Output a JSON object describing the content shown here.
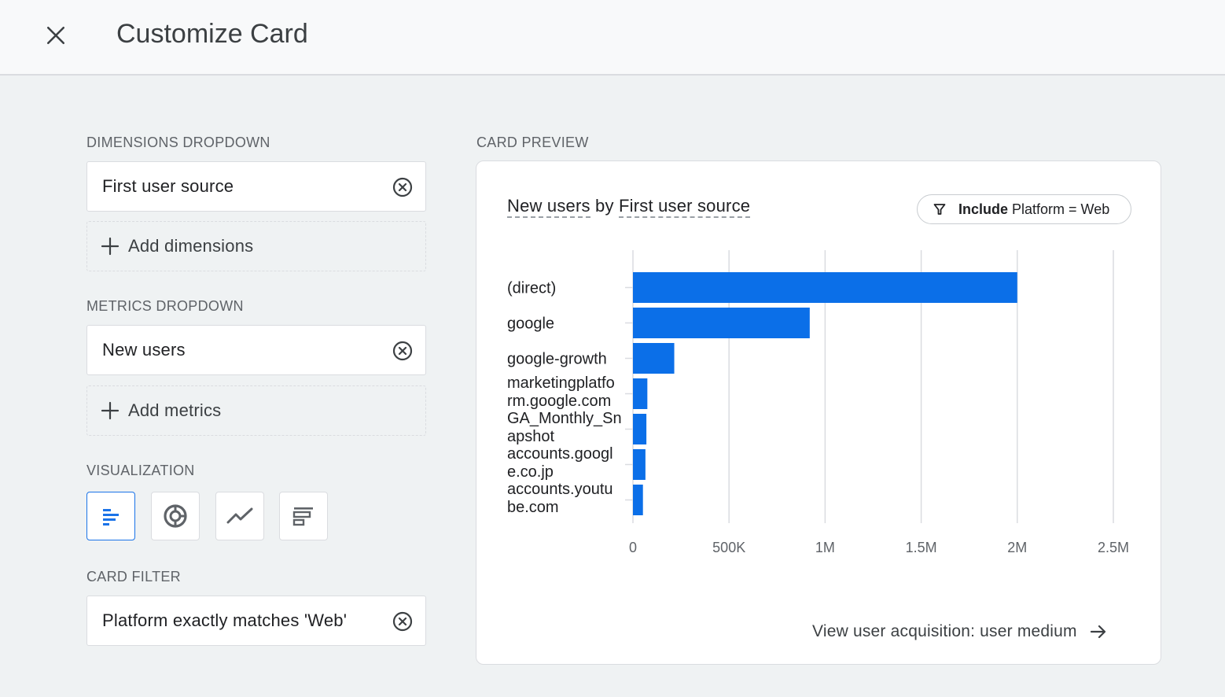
{
  "header": {
    "title": "Customize Card",
    "close_icon": "close-icon"
  },
  "dimensions": {
    "label": "DIMENSIONS DROPDOWN",
    "selected": "First user source",
    "add_label": "Add dimensions"
  },
  "metrics": {
    "label": "METRICS DROPDOWN",
    "selected": "New users",
    "add_label": "Add metrics"
  },
  "visualization": {
    "label": "VISUALIZATION",
    "options": [
      "bar-chart-icon",
      "donut-chart-icon",
      "line-chart-icon",
      "table-icon"
    ],
    "active": "bar-chart-icon"
  },
  "card_filter": {
    "label": "CARD FILTER",
    "value": "Platform exactly matches 'Web'"
  },
  "preview": {
    "label": "CARD PREVIEW",
    "title_metric": "New users",
    "title_by": "by",
    "title_dimension": "First user source",
    "filter_bold": "Include",
    "filter_text": "Platform = Web",
    "link_text": "View user acquisition: user medium"
  },
  "chart_data": {
    "type": "bar",
    "orientation": "horizontal",
    "categories": [
      [
        "(direct)"
      ],
      [
        "google"
      ],
      [
        "google-growth"
      ],
      [
        "marketingplatfo",
        "rm.google.com"
      ],
      [
        "GA_Monthly_Sn",
        "apshot"
      ],
      [
        "accounts.googl",
        "e.co.jp"
      ],
      [
        "accounts.youtu",
        "be.com"
      ]
    ],
    "values": [
      2000000,
      920000,
      215000,
      75000,
      70000,
      65000,
      52000
    ],
    "xlim": [
      0,
      2500000
    ],
    "x_ticks": [
      0,
      500000,
      1000000,
      1500000,
      2000000,
      2500000
    ],
    "x_tick_labels": [
      "0",
      "500K",
      "1M",
      "1.5M",
      "2M",
      "2.5M"
    ],
    "grid": true,
    "bar_color": "#0b6fe8"
  },
  "colors": {
    "accent": "#1a73e8",
    "bar": "#0b6fe8"
  }
}
